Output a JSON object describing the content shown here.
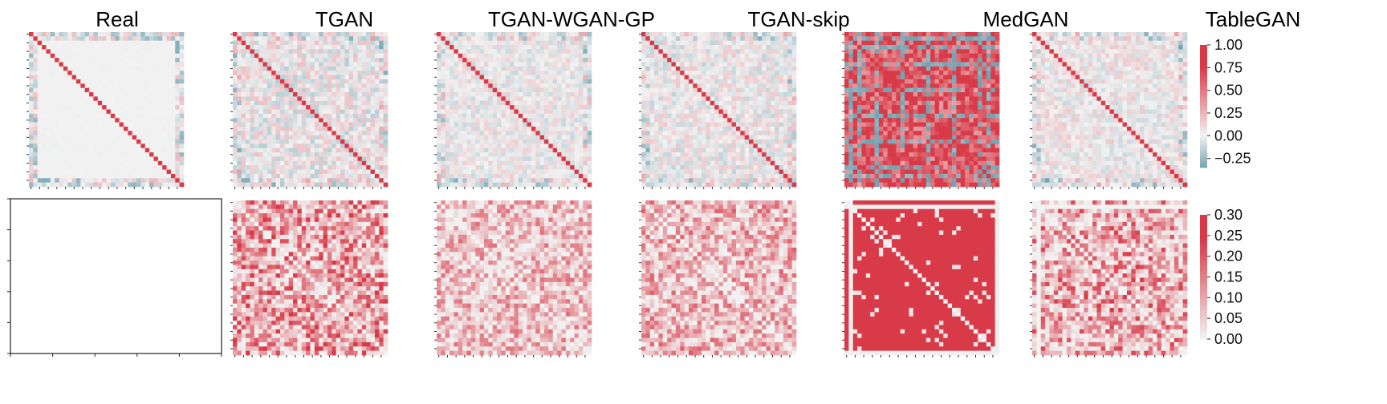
{
  "chart_data": {
    "type": "heatmap",
    "titles": [
      "Real",
      "TGAN",
      "TGAN-WGAN-GP",
      "TGAN-skip",
      "MedGAN",
      "TableGAN"
    ],
    "top_row": {
      "description": "correlation matrices",
      "colorbar": {
        "ticks": [
          "1.00",
          "0.75",
          "0.50",
          "0.25",
          "0.00",
          "−0.25"
        ],
        "range": [
          -0.35,
          1.0
        ]
      }
    },
    "bottom_row": {
      "description": "absolute difference from real correlation matrix",
      "colorbar": {
        "ticks": [
          "0.30",
          "0.25",
          "0.20",
          "0.15",
          "0.10",
          "0.05",
          "0.00"
        ],
        "range": [
          0.0,
          0.3
        ]
      }
    },
    "matrix_size": 36,
    "colors": {
      "negative": "#74a4b2",
      "neutral": "#f2f2f2",
      "positive": "#d83a48"
    }
  }
}
